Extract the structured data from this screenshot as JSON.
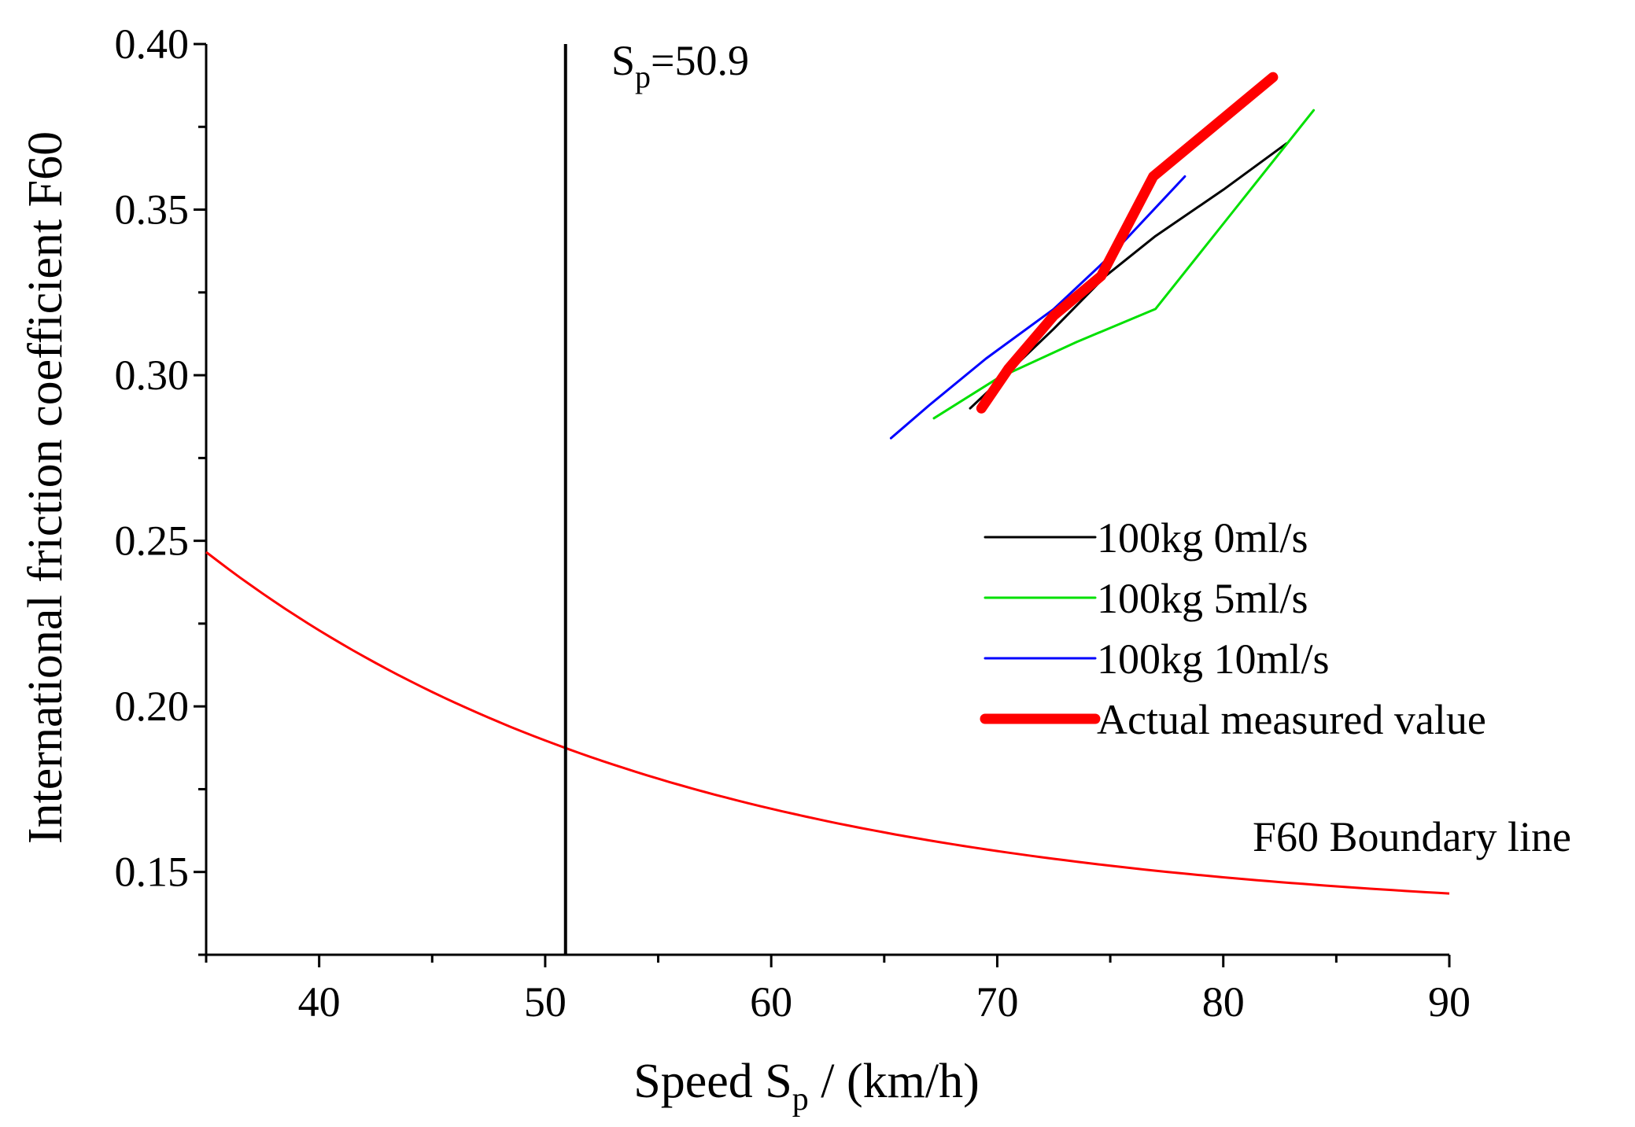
{
  "chart_data": {
    "type": "line",
    "title": "",
    "xlabel_main": "Speed S",
    "xlabel_sub": "p",
    "xlabel_tail": " / (km/h)",
    "ylabel": "International friction coefficient F60",
    "xlim": [
      35,
      90
    ],
    "ylim": [
      0.125,
      0.4
    ],
    "xticks": [
      40,
      50,
      60,
      70,
      80,
      90
    ],
    "yticks": [
      0.15,
      0.2,
      0.25,
      0.3,
      0.35,
      0.4
    ],
    "xtick_labels": [
      "40",
      "50",
      "60",
      "70",
      "80",
      "90"
    ],
    "ytick_labels": [
      "0.15",
      "0.20",
      "0.25",
      "0.30",
      "0.35",
      "0.40"
    ],
    "legend_position": "right",
    "series": [
      {
        "name": "100kg 0ml/s",
        "color": "#000000",
        "width": "thin",
        "points": [
          [
            68.8,
            0.29
          ],
          [
            70.2,
            0.299
          ],
          [
            72.5,
            0.314
          ],
          [
            74.8,
            0.33
          ],
          [
            77.0,
            0.342
          ],
          [
            80.0,
            0.356
          ],
          [
            82.8,
            0.37
          ]
        ]
      },
      {
        "name": "100kg 5ml/s",
        "color": "#00e000",
        "width": "thin",
        "points": [
          [
            67.2,
            0.287
          ],
          [
            70.0,
            0.299
          ],
          [
            73.5,
            0.31
          ],
          [
            77.0,
            0.32
          ],
          [
            80.5,
            0.35
          ],
          [
            84.0,
            0.38
          ]
        ]
      },
      {
        "name": "100kg 10ml/s",
        "color": "#0000ff",
        "width": "thin",
        "points": [
          [
            65.3,
            0.281
          ],
          [
            67.0,
            0.291
          ],
          [
            69.5,
            0.305
          ],
          [
            72.5,
            0.32
          ],
          [
            75.0,
            0.336
          ],
          [
            78.3,
            0.36
          ]
        ]
      },
      {
        "name": "Actual measured value",
        "color": "#ff0000",
        "width": "thick",
        "points": [
          [
            69.3,
            0.29
          ],
          [
            70.5,
            0.302
          ],
          [
            72.5,
            0.318
          ],
          [
            74.6,
            0.33
          ],
          [
            76.9,
            0.36
          ],
          [
            82.2,
            0.39
          ]
        ]
      }
    ],
    "boundary_line": {
      "label": "F60 Boundary line",
      "color": "#ff0000",
      "formula": "F60 = 0.1355 + 0.1111 * exp(-(x - 35) / 20.9)",
      "x_range": [
        35,
        90
      ]
    },
    "vertical_line": {
      "x": 50.9,
      "label_main": "S",
      "label_sub": "p",
      "label_tail": "=50.9",
      "color": "#000000"
    }
  }
}
